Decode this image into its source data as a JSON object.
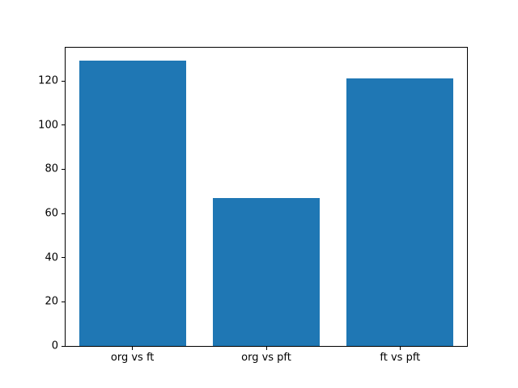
{
  "chart_data": {
    "type": "bar",
    "title": "",
    "xlabel": "",
    "ylabel": "",
    "categories": [
      "org vs ft",
      "org vs pft",
      "ft vs pft"
    ],
    "values": [
      129,
      67,
      121
    ],
    "yticks": [
      0,
      20,
      40,
      60,
      80,
      100,
      120
    ],
    "ylim": [
      0,
      135
    ],
    "bar_color": "#1f77b4",
    "bar_width_fraction": 0.8,
    "frame_color": "#000000",
    "text_color": "#000000",
    "background_color": "#ffffff",
    "grid": false,
    "legend_position": "none"
  }
}
